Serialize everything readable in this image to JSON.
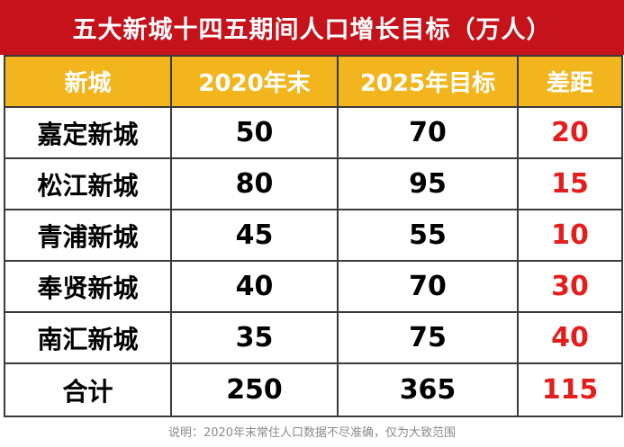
{
  "chart_data": {
    "type": "table",
    "title": "五大新城十四五期间人口增长目标（万人）",
    "columns": [
      "新城",
      "2020年末",
      "2025年目标",
      "差距"
    ],
    "rows": [
      {
        "name": "嘉定新城",
        "y2020": "50",
        "y2025": "70",
        "gap": "20"
      },
      {
        "name": "松江新城",
        "y2020": "80",
        "y2025": "95",
        "gap": "15"
      },
      {
        "name": "青浦新城",
        "y2020": "45",
        "y2025": "55",
        "gap": "10"
      },
      {
        "name": "奉贤新城",
        "y2020": "40",
        "y2025": "70",
        "gap": "30"
      },
      {
        "name": "南汇新城",
        "y2020": "35",
        "y2025": "75",
        "gap": "40"
      }
    ],
    "total": {
      "name": "合计",
      "y2020": "250",
      "y2025": "365",
      "gap": "115"
    },
    "note": "说明：2020年末常住人口数据不尽准确，仅为大致范围"
  },
  "colors": {
    "title_bg": "#c5121b",
    "header_bg": "#f3b51d",
    "gap_text": "#e41d1d",
    "border": "#3a3a3a"
  }
}
